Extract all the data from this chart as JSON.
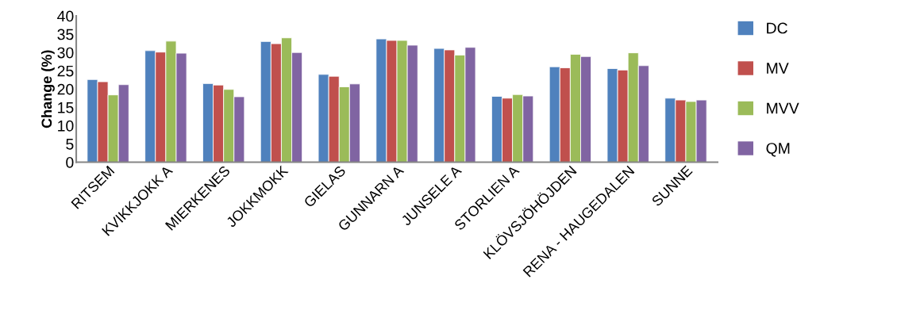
{
  "chart_data": {
    "type": "bar",
    "ylabel": "Change (%)",
    "categories": [
      "RITSEM",
      "KVIKKJOKK A",
      "MIERKENES",
      "JOKKMOKK",
      "GIELAS",
      "GUNNARN A",
      "JUNSELE A",
      "STORLIEN A",
      "KLÖVSJÖHÖJDEN",
      "RENA - HAUGEDALEN",
      "SUNNE"
    ],
    "series": [
      {
        "name": "DC",
        "color": "#4f81bd",
        "values": [
          22.6,
          30.5,
          21.5,
          33.0,
          24.0,
          33.7,
          31.1,
          18.0,
          26.1,
          25.6,
          17.5
        ]
      },
      {
        "name": "MV",
        "color": "#c0504d",
        "values": [
          22.0,
          30.1,
          21.1,
          32.4,
          23.5,
          33.3,
          30.7,
          17.5,
          25.8,
          25.2,
          17.0
        ]
      },
      {
        "name": "MVV",
        "color": "#9bbb59",
        "values": [
          18.4,
          33.1,
          19.9,
          34.0,
          20.6,
          33.3,
          29.3,
          18.5,
          29.5,
          29.9,
          16.6
        ]
      },
      {
        "name": "QM",
        "color": "#8064a2",
        "values": [
          21.2,
          29.8,
          17.9,
          30.0,
          21.4,
          32.0,
          31.4,
          18.1,
          28.9,
          26.4,
          17.0
        ]
      }
    ],
    "ylim": [
      0,
      40
    ],
    "yticks": [
      0,
      5,
      10,
      15,
      20,
      25,
      30,
      35,
      40
    ],
    "grid": false,
    "legend": "right"
  }
}
